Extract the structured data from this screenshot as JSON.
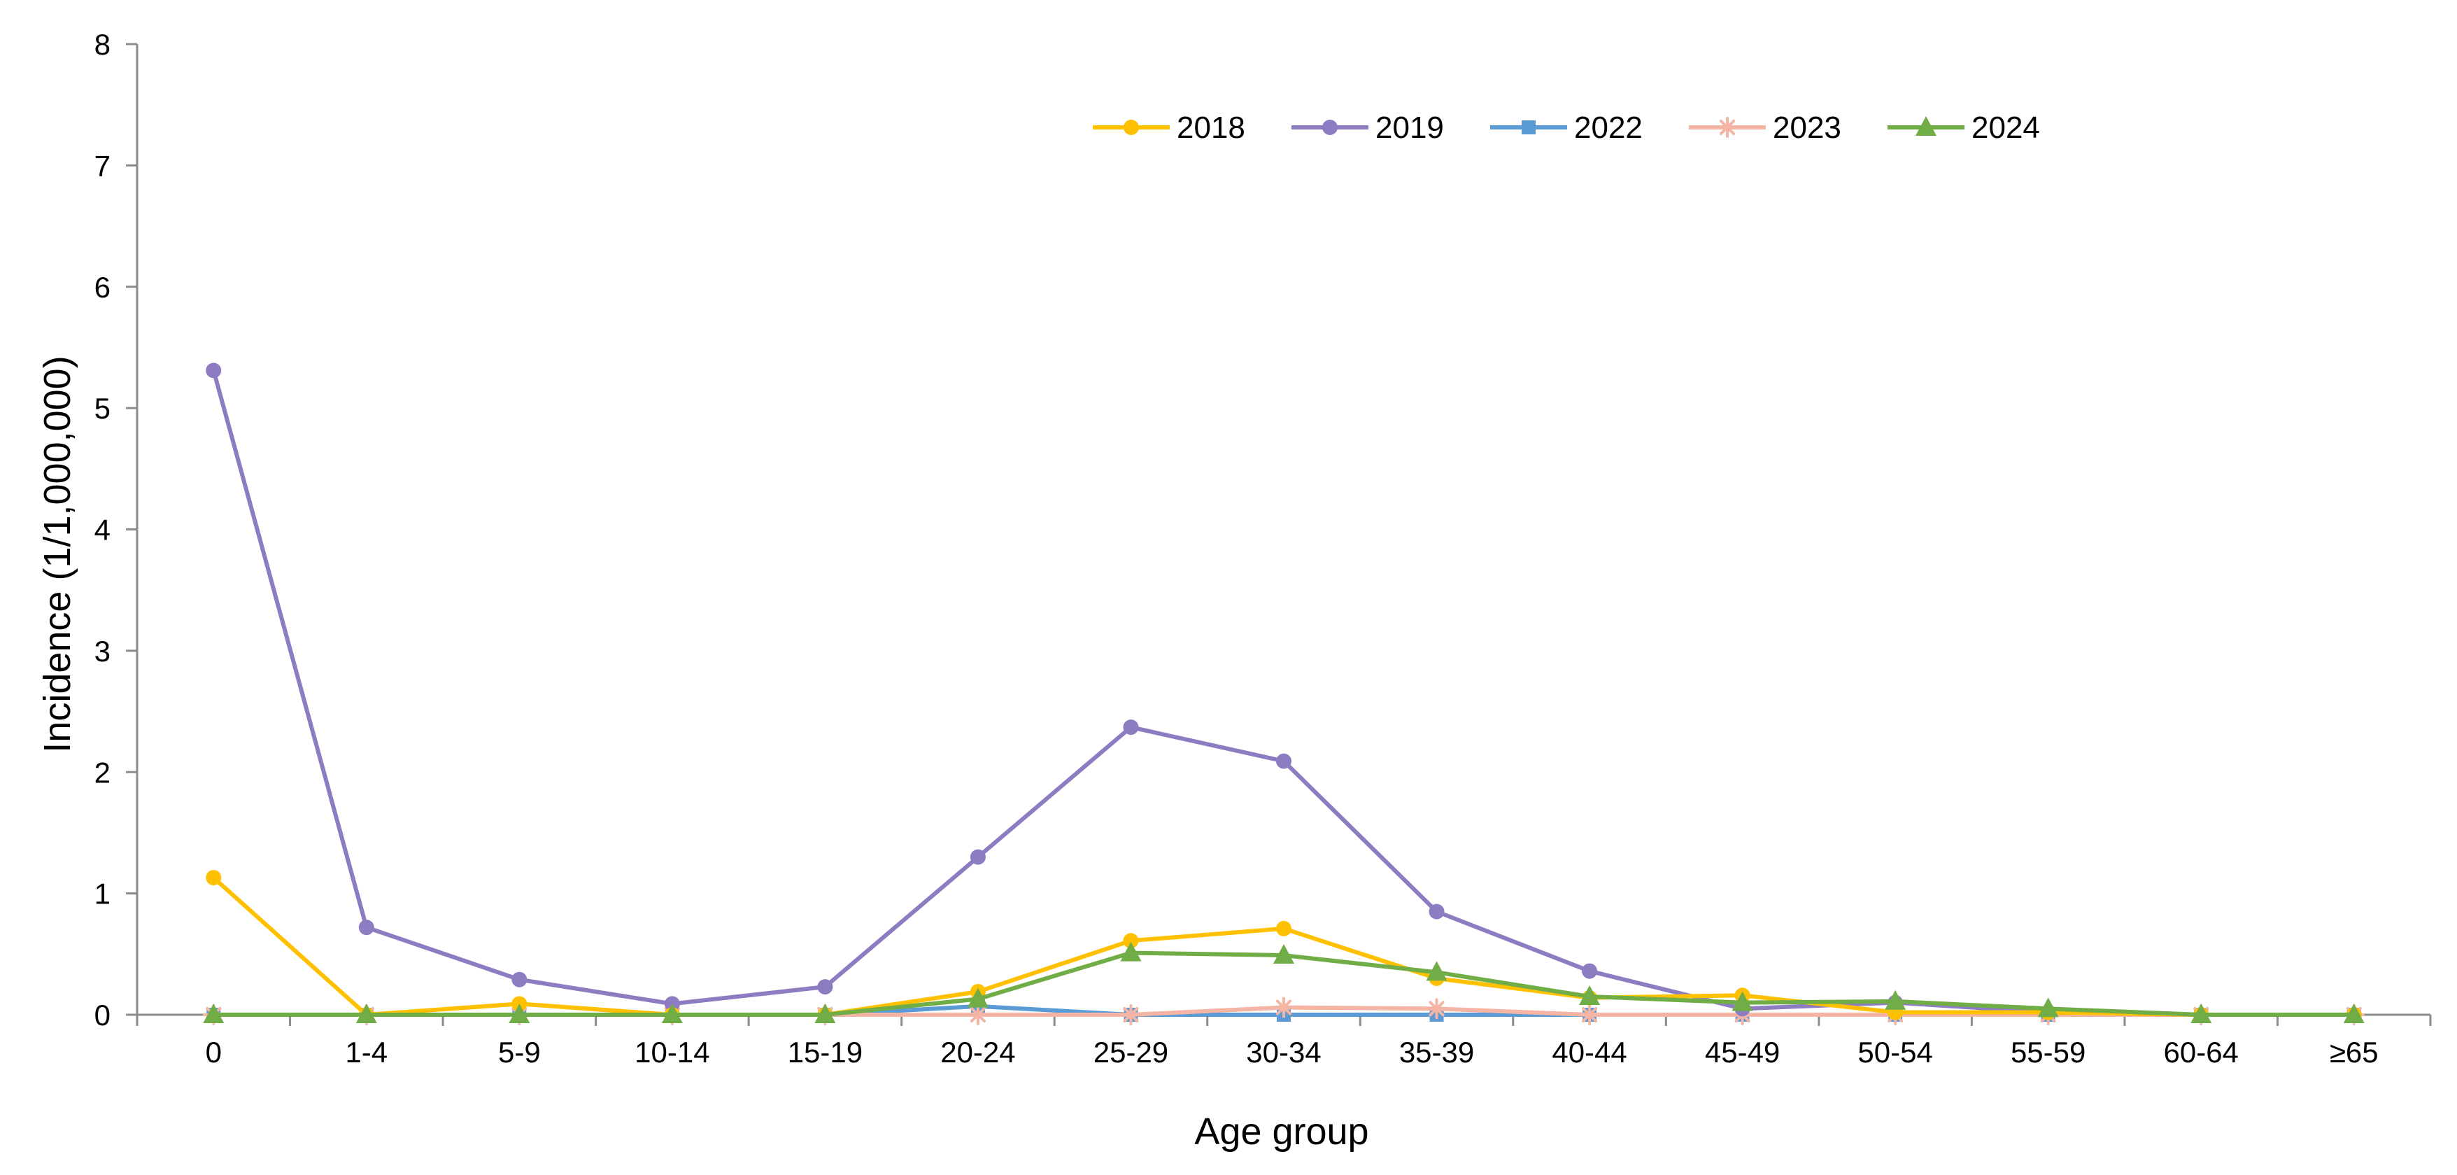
{
  "chart_data": {
    "type": "line",
    "xlabel": "Age group",
    "ylabel": "Incidence (1/1,000,000)",
    "ylim": [
      0,
      8
    ],
    "yticks": [
      "0",
      "1",
      "2",
      "3",
      "4",
      "5",
      "6",
      "7",
      "8"
    ],
    "grid": false,
    "legend_position": "top-right",
    "categories": [
      "0",
      "1-4",
      "5-9",
      "10-14",
      "15-19",
      "20-24",
      "25-29",
      "30-34",
      "35-39",
      "40-44",
      "45-49",
      "50-54",
      "55-59",
      "60-64",
      "≥65"
    ],
    "series": [
      {
        "name": "2018",
        "color": "#FFC000",
        "marker": "circle",
        "values": [
          1.13,
          0.0,
          0.09,
          0.0,
          0.0,
          0.19,
          0.61,
          0.71,
          0.3,
          0.14,
          0.16,
          0.02,
          0.02,
          0.0,
          0.0
        ]
      },
      {
        "name": "2019",
        "color": "#8E7CC3",
        "marker": "circle",
        "values": [
          5.31,
          0.72,
          0.29,
          0.09,
          0.23,
          1.3,
          2.37,
          2.09,
          0.85,
          0.36,
          0.05,
          0.1,
          0.02,
          0.0,
          0.0
        ]
      },
      {
        "name": "2022",
        "color": "#5B9BD5",
        "marker": "square",
        "values": [
          0.0,
          0.0,
          0.0,
          0.0,
          0.0,
          0.07,
          0.0,
          0.0,
          0.0,
          0.0,
          0.0,
          0.0,
          0.0,
          0.0,
          0.0
        ]
      },
      {
        "name": "2023",
        "color": "#F4B5A4",
        "marker": "star",
        "values": [
          0.0,
          0.0,
          0.0,
          0.0,
          0.0,
          0.0,
          0.0,
          0.06,
          0.05,
          0.0,
          0.0,
          0.0,
          0.0,
          0.0,
          0.0
        ]
      },
      {
        "name": "2024",
        "color": "#70AD47",
        "marker": "triangle",
        "values": [
          0.0,
          0.0,
          0.0,
          0.0,
          0.0,
          0.13,
          0.51,
          0.49,
          0.35,
          0.15,
          0.1,
          0.11,
          0.05,
          0.0,
          0.0
        ]
      }
    ]
  }
}
